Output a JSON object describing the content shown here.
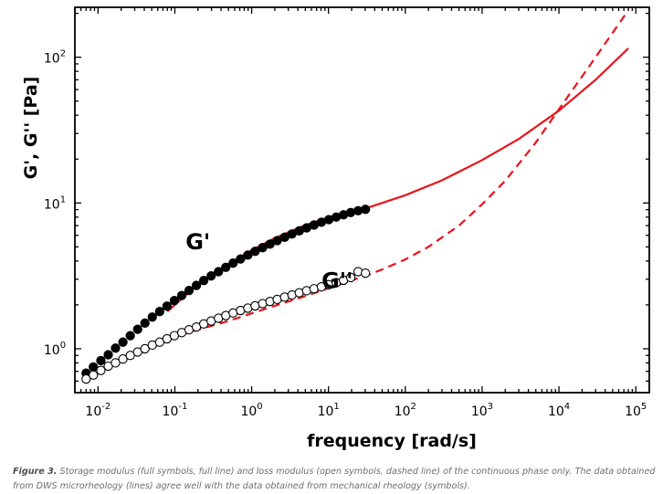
{
  "chart_data": {
    "type": "line",
    "scale": {
      "x": "log",
      "y": "log"
    },
    "xlabel": "frequency [rad/s]",
    "ylabel": "G', G'' [Pa]",
    "xlim": [
      0.005,
      150000
    ],
    "ylim": [
      0.5,
      220
    ],
    "x_ticks": [
      {
        "value": 0.01,
        "base": "10",
        "exp": "-2"
      },
      {
        "value": 0.1,
        "base": "10",
        "exp": "-1"
      },
      {
        "value": 1,
        "base": "10",
        "exp": "0"
      },
      {
        "value": 10,
        "base": "10",
        "exp": "1"
      },
      {
        "value": 100,
        "base": "10",
        "exp": "2"
      },
      {
        "value": 1000,
        "base": "10",
        "exp": "3"
      },
      {
        "value": 10000,
        "base": "10",
        "exp": "4"
      },
      {
        "value": 100000,
        "base": "10",
        "exp": "5"
      }
    ],
    "y_ticks": [
      {
        "value": 1,
        "base": "10",
        "exp": "0"
      },
      {
        "value": 10,
        "base": "10",
        "exp": "1"
      },
      {
        "value": 100,
        "base": "10",
        "exp": "2"
      }
    ],
    "annotations": [
      {
        "text": "G'",
        "x": 0.2,
        "y": 4.8
      },
      {
        "text": "G''",
        "x": 13,
        "y": 2.6
      }
    ],
    "series": [
      {
        "name": "G' (mechanical rheology, full symbols)",
        "style": "filled-circles",
        "color": "#000000",
        "x": [
          0.007,
          0.0087,
          0.0109,
          0.0136,
          0.0169,
          0.0211,
          0.0263,
          0.0328,
          0.0408,
          0.0509,
          0.0635,
          0.0791,
          0.0986,
          0.123,
          0.153,
          0.191,
          0.238,
          0.297,
          0.37,
          0.461,
          0.574,
          0.716,
          0.892,
          1.11,
          1.39,
          1.73,
          2.15,
          2.69,
          3.35,
          4.17,
          5.2,
          6.48,
          8.08,
          10.1,
          12.6,
          15.7,
          19.5,
          24.3,
          30.3
        ],
        "y": [
          0.68,
          0.75,
          0.83,
          0.91,
          1.01,
          1.11,
          1.23,
          1.36,
          1.5,
          1.65,
          1.8,
          1.96,
          2.14,
          2.32,
          2.51,
          2.72,
          2.94,
          3.16,
          3.38,
          3.62,
          3.87,
          4.13,
          4.39,
          4.66,
          4.94,
          5.22,
          5.52,
          5.82,
          6.13,
          6.44,
          6.75,
          7.06,
          7.38,
          7.69,
          8.0,
          8.3,
          8.6,
          8.85,
          9.05
        ]
      },
      {
        "name": "G'' (mechanical rheology, open symbols)",
        "style": "open-circles",
        "color": "#000000",
        "x": [
          0.007,
          0.0087,
          0.0109,
          0.0136,
          0.0169,
          0.0211,
          0.0263,
          0.0328,
          0.0408,
          0.0509,
          0.0635,
          0.0791,
          0.0986,
          0.123,
          0.153,
          0.191,
          0.238,
          0.297,
          0.37,
          0.461,
          0.574,
          0.716,
          0.892,
          1.11,
          1.39,
          1.73,
          2.15,
          2.69,
          3.35,
          4.17,
          5.2,
          6.48,
          8.08,
          10.1,
          12.6,
          15.7,
          19.5,
          24.3,
          30.3
        ],
        "y": [
          0.62,
          0.66,
          0.71,
          0.76,
          0.8,
          0.85,
          0.9,
          0.95,
          1.0,
          1.06,
          1.11,
          1.17,
          1.23,
          1.29,
          1.35,
          1.41,
          1.48,
          1.55,
          1.62,
          1.69,
          1.76,
          1.83,
          1.9,
          1.97,
          2.04,
          2.11,
          2.18,
          2.26,
          2.34,
          2.42,
          2.5,
          2.58,
          2.66,
          2.75,
          2.84,
          2.95,
          3.08,
          3.38,
          3.3
        ]
      },
      {
        "name": "G' (DWS microrheology, full line)",
        "style": "solid-line",
        "color": "#e8141b",
        "x": [
          0.08,
          0.1,
          0.15,
          0.2,
          0.3,
          0.5,
          1,
          2,
          5,
          10,
          30,
          100,
          300,
          1000,
          3000,
          10000,
          30000,
          80000
        ],
        "y": [
          1.8,
          2.0,
          2.42,
          2.75,
          3.2,
          3.8,
          4.75,
          5.75,
          7.05,
          7.95,
          9.15,
          11.3,
          14.3,
          19.7,
          27.5,
          43,
          70,
          115
        ]
      },
      {
        "name": "G'' (DWS microrheology, dashed line)",
        "style": "dashed-line",
        "color": "#e8141b",
        "x": [
          0.08,
          0.1,
          0.2,
          0.5,
          1,
          2,
          5,
          10,
          20,
          30,
          50,
          100,
          200,
          500,
          1000,
          2000,
          5000,
          10000,
          30000,
          80000
        ],
        "y": [
          1.15,
          1.2,
          1.35,
          1.55,
          1.75,
          1.97,
          2.3,
          2.6,
          2.95,
          3.15,
          3.5,
          4.1,
          5.0,
          7.0,
          9.8,
          14.2,
          26,
          44,
          100,
          210
        ]
      }
    ]
  },
  "caption": {
    "label": "Figure 3.",
    "text": "Storage modulus (full symbols, full line) and loss modulus (open symbols, dashed line) of the continuous phase only. The data obtained from DWS microrheology (lines) agree well with the data obtained from mechanical rheology (symbols)."
  }
}
